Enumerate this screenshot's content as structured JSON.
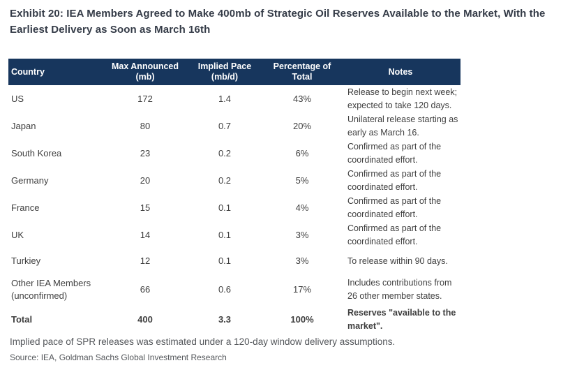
{
  "exhibit": {
    "title": "Exhibit 20: IEA Members Agreed to Make 400mb of Strategic Oil Reserves Available to the Market, With the\nEarliest Delivery as Soon as March 16th"
  },
  "table": {
    "headers": {
      "country": "Country",
      "max_announced": "Max Announced\n(mb)",
      "implied_pace": "Implied Pace\n(mb/d)",
      "pct_total": "Percentage of\nTotal",
      "notes": "Notes"
    },
    "rows": [
      {
        "country": "US",
        "max_announced": "172",
        "implied_pace": "1.4",
        "pct_total": "43%",
        "notes": "Release to begin next week; expected to take 120 days."
      },
      {
        "country": "Japan",
        "max_announced": "80",
        "implied_pace": "0.7",
        "pct_total": "20%",
        "notes": "Unilateral release starting as early as March 16."
      },
      {
        "country": "South Korea",
        "max_announced": "23",
        "implied_pace": "0.2",
        "pct_total": "6%",
        "notes": "Confirmed as part of the coordinated effort."
      },
      {
        "country": "Germany",
        "max_announced": "20",
        "implied_pace": "0.2",
        "pct_total": "5%",
        "notes": "Confirmed as part of the coordinated effort."
      },
      {
        "country": "France",
        "max_announced": "15",
        "implied_pace": "0.1",
        "pct_total": "4%",
        "notes": "Confirmed as part of the coordinated effort."
      },
      {
        "country": "UK",
        "max_announced": "14",
        "implied_pace": "0.1",
        "pct_total": "3%",
        "notes": "Confirmed as part of the coordinated effort."
      },
      {
        "country": "Turkiey",
        "max_announced": "12",
        "implied_pace": "0.1",
        "pct_total": "3%",
        "notes": "To release within 90 days."
      },
      {
        "country": "Other IEA Members (unconfirmed)",
        "max_announced": "66",
        "implied_pace": "0.6",
        "pct_total": "17%",
        "notes": "Includes contributions from 26 other member states."
      }
    ],
    "total_row": {
      "country": "Total",
      "max_announced": "400",
      "implied_pace": "3.3",
      "pct_total": "100%",
      "notes": "Reserves \"available to the market\"."
    }
  },
  "footnotes": {
    "assumption": "Implied pace of SPR releases was estimated under a 120-day window delivery assumptions.",
    "source": "Source: IEA, Goldman Sachs Global Investment Research"
  },
  "colors": {
    "header_bg": "#17365D",
    "header_text": "#FFFFFF",
    "title_text": "#343B47",
    "body_text": "#3F3F3F",
    "footnote_text": "#54575B"
  }
}
